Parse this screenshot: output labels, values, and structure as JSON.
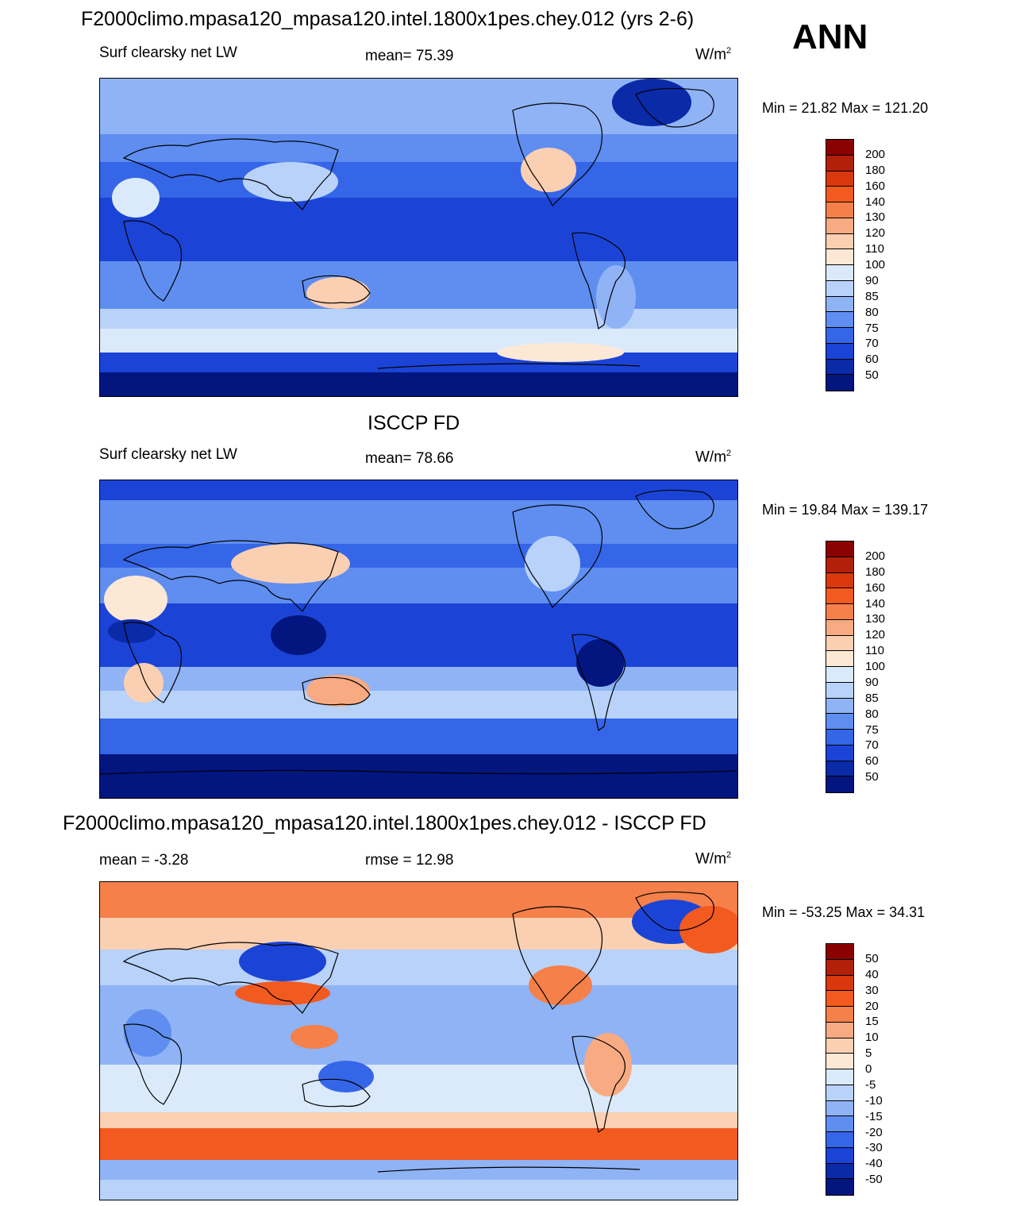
{
  "season": "ANN",
  "panels": [
    {
      "id": "model",
      "title": "F2000climo.mpasa120_mpasa120.intel.1800x1pes.chey.012 (yrs 2-6)",
      "left_label": "Surf clearsky net LW",
      "center_label": "mean=  75.39",
      "units": "W/m",
      "units_sup": "2",
      "minmax": "Min =  21.82 Max = 121.20",
      "colorbar": {
        "colors": [
          "#8b0000",
          "#b2200a",
          "#d9380e",
          "#f25a1f",
          "#f5804a",
          "#f8aa82",
          "#fbcfb2",
          "#fde8d6",
          "#dbeafb",
          "#b8d2fa",
          "#8fb3f5",
          "#5f8ef0",
          "#3566e8",
          "#1b44d6",
          "#0a2aa8",
          "#03157f"
        ],
        "labels": [
          "200",
          "180",
          "160",
          "140",
          "130",
          "120",
          "110",
          "100",
          "90",
          "85",
          "80",
          "75",
          "70",
          "60",
          "50"
        ]
      }
    },
    {
      "id": "obs",
      "title": "ISCCP FD",
      "left_label": "Surf clearsky net LW",
      "center_label": "mean=  78.66",
      "units": "W/m",
      "units_sup": "2",
      "minmax": "Min =  19.84 Max = 139.17",
      "colorbar": {
        "colors": [
          "#8b0000",
          "#b2200a",
          "#d9380e",
          "#f25a1f",
          "#f5804a",
          "#f8aa82",
          "#fbcfb2",
          "#fde8d6",
          "#dbeafb",
          "#b8d2fa",
          "#8fb3f5",
          "#5f8ef0",
          "#3566e8",
          "#1b44d6",
          "#0a2aa8",
          "#03157f"
        ],
        "labels": [
          "200",
          "180",
          "160",
          "140",
          "130",
          "120",
          "110",
          "100",
          "90",
          "85",
          "80",
          "75",
          "70",
          "60",
          "50"
        ]
      }
    },
    {
      "id": "diff",
      "title": "F2000climo.mpasa120_mpasa120.intel.1800x1pes.chey.012 - ISCCP FD",
      "left_label": "mean =  -3.28",
      "center_label": "rmse =  12.98",
      "units": "W/m",
      "units_sup": "2",
      "minmax": "Min = -53.25 Max =  34.31",
      "colorbar": {
        "colors": [
          "#8b0000",
          "#b2200a",
          "#d9380e",
          "#f25a1f",
          "#f5804a",
          "#f8aa82",
          "#fbcfb2",
          "#fde8d6",
          "#dbeafb",
          "#b8d2fa",
          "#8fb3f5",
          "#5f8ef0",
          "#3566e8",
          "#1b44d6",
          "#0a2aa8",
          "#03157f"
        ],
        "labels": [
          "50",
          "40",
          "30",
          "20",
          "15",
          "10",
          "5",
          "0",
          "-5",
          "-10",
          "-15",
          "-20",
          "-30",
          "-40",
          "-50"
        ]
      }
    }
  ]
}
